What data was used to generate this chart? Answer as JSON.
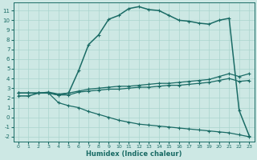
{
  "xlabel": "Humidex (Indice chaleur)",
  "xlim": [
    -0.5,
    23.5
  ],
  "ylim": [
    -2.5,
    11.8
  ],
  "xticks": [
    0,
    1,
    2,
    3,
    4,
    5,
    6,
    7,
    8,
    9,
    10,
    11,
    12,
    13,
    14,
    15,
    16,
    17,
    18,
    19,
    20,
    21,
    22,
    23
  ],
  "yticks": [
    -2,
    -1,
    0,
    1,
    2,
    3,
    4,
    5,
    6,
    7,
    8,
    9,
    10,
    11
  ],
  "bg_color": "#cde8e4",
  "grid_color": "#aad4ce",
  "line_color": "#1a6b65",
  "series": [
    {
      "x": [
        0,
        1,
        2,
        3,
        4,
        5,
        6,
        7,
        8,
        9,
        10,
        11,
        12,
        13,
        14,
        15,
        16,
        17,
        18,
        19,
        20,
        21,
        22,
        23
      ],
      "y": [
        2.2,
        2.2,
        2.5,
        2.5,
        2.3,
        2.5,
        4.8,
        7.5,
        8.5,
        10.1,
        10.5,
        11.2,
        11.4,
        11.1,
        11.0,
        10.5,
        10.0,
        9.9,
        9.7,
        9.6,
        10.0,
        10.2,
        0.7,
        -1.9
      ],
      "lw": 1.1,
      "marker": "+"
    },
    {
      "x": [
        0,
        1,
        2,
        3,
        4,
        5,
        6,
        7,
        8,
        9,
        10,
        11,
        12,
        13,
        14,
        15,
        16,
        17,
        18,
        19,
        20,
        21,
        22,
        23
      ],
      "y": [
        2.5,
        2.5,
        2.5,
        2.6,
        2.4,
        2.5,
        2.7,
        2.9,
        3.0,
        3.1,
        3.2,
        3.2,
        3.3,
        3.4,
        3.5,
        3.5,
        3.6,
        3.7,
        3.8,
        3.9,
        4.2,
        4.5,
        4.2,
        4.5
      ],
      "lw": 0.9,
      "marker": "+"
    },
    {
      "x": [
        0,
        1,
        2,
        3,
        4,
        5,
        6,
        7,
        8,
        9,
        10,
        11,
        12,
        13,
        14,
        15,
        16,
        17,
        18,
        19,
        20,
        21,
        22,
        23
      ],
      "y": [
        2.5,
        2.5,
        2.5,
        2.5,
        2.3,
        2.3,
        2.6,
        2.7,
        2.8,
        2.9,
        2.9,
        3.0,
        3.1,
        3.1,
        3.2,
        3.3,
        3.3,
        3.4,
        3.5,
        3.6,
        3.8,
        4.0,
        3.7,
        3.8
      ],
      "lw": 0.9,
      "marker": "+"
    },
    {
      "x": [
        0,
        1,
        2,
        3,
        4,
        5,
        6,
        7,
        8,
        9,
        10,
        11,
        12,
        13,
        14,
        15,
        16,
        17,
        18,
        19,
        20,
        21,
        22,
        23
      ],
      "y": [
        2.5,
        2.5,
        2.5,
        2.5,
        1.5,
        1.2,
        1.0,
        0.6,
        0.3,
        0.0,
        -0.3,
        -0.5,
        -0.7,
        -0.8,
        -0.9,
        -1.0,
        -1.1,
        -1.2,
        -1.3,
        -1.4,
        -1.5,
        -1.6,
        -1.8,
        -2.0
      ],
      "lw": 0.9,
      "marker": "+"
    }
  ]
}
